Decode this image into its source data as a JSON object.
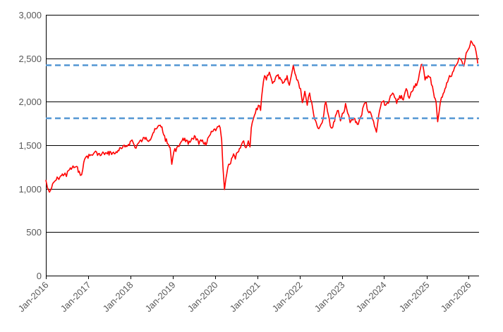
{
  "chart_data": {
    "type": "line",
    "title": "",
    "xlabel": "",
    "ylabel": "",
    "ylim": [
      0,
      3000
    ],
    "xlim": [
      "2016-01-01",
      "2026-03-31"
    ],
    "grid": "horizontal",
    "legend": "none",
    "y_ticks": [
      "0",
      "500",
      "1,000",
      "1,500",
      "2,000",
      "2,500",
      "3,000"
    ],
    "y_tick_values": [
      0,
      500,
      1000,
      1500,
      2000,
      2500,
      3000
    ],
    "x_ticks": [
      "Jan-2016",
      "Jan-2017",
      "Jan-2018",
      "Jan-2019",
      "Jan-2020",
      "Jan-2021",
      "Jan-2022",
      "Jan-2023",
      "Jan-2024",
      "Jan-2025",
      "Jan-2026"
    ],
    "x_tick_dates": [
      "2016-01-01",
      "2017-01-01",
      "2018-01-01",
      "2019-01-01",
      "2020-01-01",
      "2021-01-01",
      "2022-01-01",
      "2023-01-01",
      "2024-01-01",
      "2025-01-01",
      "2026-01-01"
    ],
    "series": [
      {
        "color": "#ff0000",
        "points": [
          [
            "2016-01-01",
            1100
          ],
          [
            "2016-01-15",
            1010
          ],
          [
            "2016-02-01",
            960
          ],
          [
            "2016-02-20",
            1010
          ],
          [
            "2016-03-15",
            1080
          ],
          [
            "2016-04-15",
            1120
          ],
          [
            "2016-05-15",
            1150
          ],
          [
            "2016-06-15",
            1180
          ],
          [
            "2016-06-27",
            1140
          ],
          [
            "2016-07-15",
            1210
          ],
          [
            "2016-08-15",
            1240
          ],
          [
            "2016-09-15",
            1250
          ],
          [
            "2016-10-15",
            1200
          ],
          [
            "2016-11-05",
            1160
          ],
          [
            "2016-11-15",
            1220
          ],
          [
            "2016-12-01",
            1340
          ],
          [
            "2016-12-15",
            1370
          ],
          [
            "2017-01-15",
            1380
          ],
          [
            "2017-02-15",
            1400
          ],
          [
            "2017-03-15",
            1420
          ],
          [
            "2017-04-15",
            1380
          ],
          [
            "2017-05-15",
            1410
          ],
          [
            "2017-06-15",
            1400
          ],
          [
            "2017-07-15",
            1420
          ],
          [
            "2017-08-15",
            1400
          ],
          [
            "2017-09-15",
            1440
          ],
          [
            "2017-10-15",
            1460
          ],
          [
            "2017-11-15",
            1480
          ],
          [
            "2017-12-15",
            1510
          ],
          [
            "2018-01-15",
            1560
          ],
          [
            "2018-02-10",
            1470
          ],
          [
            "2018-03-15",
            1530
          ],
          [
            "2018-04-15",
            1560
          ],
          [
            "2018-05-15",
            1590
          ],
          [
            "2018-06-15",
            1560
          ],
          [
            "2018-07-15",
            1640
          ],
          [
            "2018-08-15",
            1690
          ],
          [
            "2018-09-15",
            1730
          ],
          [
            "2018-09-30",
            1710
          ],
          [
            "2018-10-15",
            1620
          ],
          [
            "2018-11-15",
            1520
          ],
          [
            "2018-12-10",
            1470
          ],
          [
            "2018-12-24",
            1280
          ],
          [
            "2019-01-10",
            1420
          ],
          [
            "2019-02-15",
            1490
          ],
          [
            "2019-03-15",
            1540
          ],
          [
            "2019-04-15",
            1580
          ],
          [
            "2019-05-15",
            1510
          ],
          [
            "2019-06-15",
            1580
          ],
          [
            "2019-07-15",
            1600
          ],
          [
            "2019-08-15",
            1510
          ],
          [
            "2019-09-15",
            1560
          ],
          [
            "2019-10-15",
            1500
          ],
          [
            "2019-11-15",
            1610
          ],
          [
            "2019-12-15",
            1660
          ],
          [
            "2020-01-15",
            1690
          ],
          [
            "2020-02-15",
            1700
          ],
          [
            "2020-02-28",
            1560
          ],
          [
            "2020-03-10",
            1250
          ],
          [
            "2020-03-23",
            990
          ],
          [
            "2020-04-05",
            1120
          ],
          [
            "2020-04-20",
            1240
          ],
          [
            "2020-05-15",
            1290
          ],
          [
            "2020-06-10",
            1400
          ],
          [
            "2020-06-25",
            1340
          ],
          [
            "2020-07-15",
            1420
          ],
          [
            "2020-08-15",
            1500
          ],
          [
            "2020-09-05",
            1550
          ],
          [
            "2020-09-25",
            1470
          ],
          [
            "2020-10-15",
            1550
          ],
          [
            "2020-10-30",
            1480
          ],
          [
            "2020-11-10",
            1700
          ],
          [
            "2020-11-25",
            1790
          ],
          [
            "2020-12-15",
            1870
          ],
          [
            "2021-01-10",
            1960
          ],
          [
            "2021-01-29",
            1900
          ],
          [
            "2021-02-15",
            2150
          ],
          [
            "2021-03-05",
            2300
          ],
          [
            "2021-03-20",
            2250
          ],
          [
            "2021-04-15",
            2340
          ],
          [
            "2021-05-12",
            2210
          ],
          [
            "2021-06-15",
            2300
          ],
          [
            "2021-07-15",
            2280
          ],
          [
            "2021-08-15",
            2220
          ],
          [
            "2021-09-15",
            2300
          ],
          [
            "2021-10-05",
            2190
          ],
          [
            "2021-10-20",
            2290
          ],
          [
            "2021-11-08",
            2420
          ],
          [
            "2021-11-30",
            2300
          ],
          [
            "2021-12-15",
            2250
          ],
          [
            "2022-01-10",
            2150
          ],
          [
            "2022-01-25",
            1990
          ],
          [
            "2022-02-15",
            2120
          ],
          [
            "2022-03-08",
            1960
          ],
          [
            "2022-03-29",
            2100
          ],
          [
            "2022-04-15",
            2000
          ],
          [
            "2022-05-10",
            1800
          ],
          [
            "2022-05-25",
            1760
          ],
          [
            "2022-06-16",
            1690
          ],
          [
            "2022-07-15",
            1760
          ],
          [
            "2022-08-15",
            2000
          ],
          [
            "2022-08-30",
            1890
          ],
          [
            "2022-09-15",
            1800
          ],
          [
            "2022-09-30",
            1700
          ],
          [
            "2022-10-15",
            1710
          ],
          [
            "2022-11-15",
            1860
          ],
          [
            "2022-12-01",
            1900
          ],
          [
            "2022-12-20",
            1780
          ],
          [
            "2023-01-15",
            1870
          ],
          [
            "2023-02-02",
            1980
          ],
          [
            "2023-02-20",
            1870
          ],
          [
            "2023-03-13",
            1760
          ],
          [
            "2023-04-15",
            1810
          ],
          [
            "2023-05-15",
            1740
          ],
          [
            "2023-06-15",
            1830
          ],
          [
            "2023-07-15",
            1980
          ],
          [
            "2023-07-31",
            1990
          ],
          [
            "2023-08-15",
            1890
          ],
          [
            "2023-09-15",
            1840
          ],
          [
            "2023-10-10",
            1720
          ],
          [
            "2023-10-27",
            1650
          ],
          [
            "2023-11-15",
            1840
          ],
          [
            "2023-12-01",
            1940
          ],
          [
            "2023-12-20",
            2000
          ],
          [
            "2024-01-15",
            1960
          ],
          [
            "2024-02-15",
            2020
          ],
          [
            "2024-03-15",
            2100
          ],
          [
            "2024-04-19",
            1980
          ],
          [
            "2024-05-15",
            2070
          ],
          [
            "2024-06-15",
            2020
          ],
          [
            "2024-07-10",
            2150
          ],
          [
            "2024-08-05",
            2040
          ],
          [
            "2024-09-15",
            2180
          ],
          [
            "2024-10-15",
            2220
          ],
          [
            "2024-11-10",
            2380
          ],
          [
            "2024-11-25",
            2430
          ],
          [
            "2024-12-10",
            2350
          ],
          [
            "2024-12-20",
            2250
          ],
          [
            "2025-01-15",
            2300
          ],
          [
            "2025-02-05",
            2280
          ],
          [
            "2025-03-10",
            2050
          ],
          [
            "2025-03-25",
            2000
          ],
          [
            "2025-04-08",
            1770
          ],
          [
            "2025-04-20",
            1880
          ],
          [
            "2025-05-10",
            2050
          ],
          [
            "2025-06-10",
            2150
          ],
          [
            "2025-07-10",
            2260
          ],
          [
            "2025-08-15",
            2340
          ],
          [
            "2025-09-15",
            2420
          ],
          [
            "2025-10-15",
            2500
          ],
          [
            "2025-11-05",
            2460
          ],
          [
            "2025-11-20",
            2410
          ],
          [
            "2025-12-10",
            2560
          ],
          [
            "2026-01-05",
            2620
          ],
          [
            "2026-01-20",
            2700
          ],
          [
            "2026-02-10",
            2650
          ],
          [
            "2026-03-05",
            2580
          ],
          [
            "2026-03-20",
            2440
          ]
        ]
      }
    ],
    "reference_lines": [
      {
        "y": 2420,
        "color": "#5b9bd5",
        "style": "dashed"
      },
      {
        "y": 1810,
        "color": "#5b9bd5",
        "style": "dashed"
      }
    ]
  }
}
